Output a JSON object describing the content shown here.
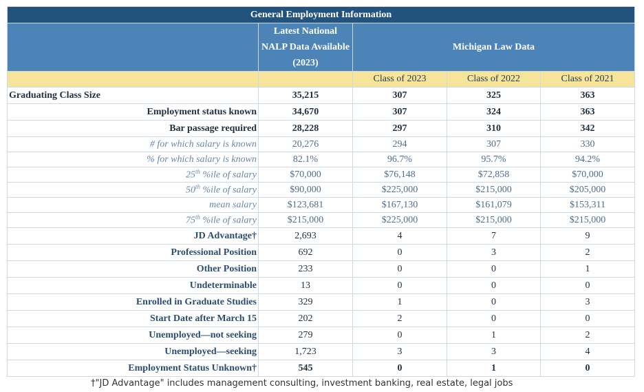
{
  "table": {
    "title": "General Employment Information",
    "header": {
      "national": [
        "Latest National",
        "NALP Data Available",
        "(2023)"
      ],
      "michigan": "Michigan Law Data",
      "classes": [
        "Class of 2023",
        "Class of 2022",
        "Class of 2021"
      ]
    },
    "rows": [
      {
        "label": "Graduating Class Size",
        "values": [
          "35,215",
          "307",
          "325",
          "363"
        ]
      },
      {
        "label": "Employment status known",
        "values": [
          "34,670",
          "307",
          "324",
          "363"
        ]
      },
      {
        "label": "Bar passage required",
        "values": [
          "28,228",
          "297",
          "310",
          "342"
        ]
      },
      {
        "label": "# for which salary is known",
        "values": [
          "20,276",
          "294",
          "307",
          "330"
        ]
      },
      {
        "label": "% for which salary is known",
        "values": [
          "82.1%",
          "96.7%",
          "95.7%",
          "94.2%"
        ]
      },
      {
        "label": {
          "number": "25",
          "suffix": "th",
          "text": "%ile of salary"
        },
        "values": [
          "$70,000",
          "$76,148",
          "$72,858",
          "$70,000"
        ]
      },
      {
        "label": {
          "number": "50",
          "suffix": "th",
          "text": "%ile of salary"
        },
        "values": [
          "$90,000",
          "$225,000",
          "$215,000",
          "$205,000"
        ]
      },
      {
        "label": "mean salary",
        "values": [
          "$123,681",
          "$167,130",
          "$161,079",
          "$153,311"
        ]
      },
      {
        "label": {
          "number": "75",
          "suffix": "th",
          "text": "%ile of salary"
        },
        "values": [
          "$215,000",
          "$225,000",
          "$215,000",
          "$215,000"
        ]
      },
      {
        "label": "JD Advantage†",
        "values": [
          "2,693",
          "4",
          "7",
          "9"
        ]
      },
      {
        "label": "Professional Position",
        "values": [
          "692",
          "0",
          "3",
          "2"
        ]
      },
      {
        "label": "Other Position",
        "values": [
          "233",
          "0",
          "0",
          "1"
        ]
      },
      {
        "label": "Undeterminable",
        "values": [
          "13",
          "0",
          "0",
          "0"
        ]
      },
      {
        "label": "Enrolled in Graduate Studies",
        "values": [
          "329",
          "1",
          "0",
          "3"
        ]
      },
      {
        "label": "Start Date after March 15",
        "values": [
          "202",
          "2",
          "0",
          "0"
        ]
      },
      {
        "label": "Unemployed—not seeking",
        "values": [
          "279",
          "0",
          "1",
          "2"
        ]
      },
      {
        "label": "Unemployed—seeking",
        "values": [
          "1,723",
          "3",
          "3",
          "4"
        ]
      },
      {
        "label": "Employment Status Unknown†",
        "values": [
          "545",
          "0",
          "1",
          "0"
        ]
      }
    ],
    "footnote": "†\"JD Advantage\" includes management consulting, investment banking, real estate, legal jobs"
  }
}
